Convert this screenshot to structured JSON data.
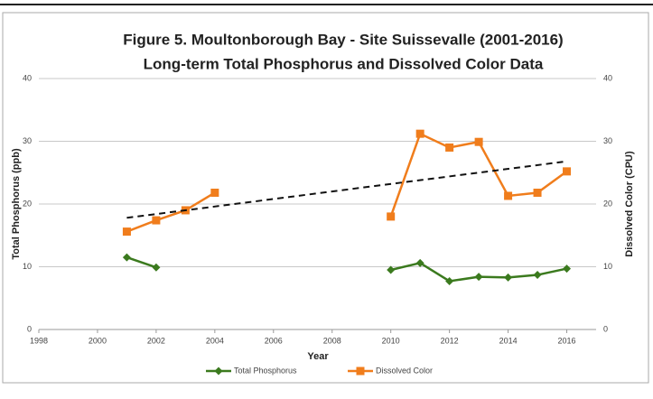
{
  "chart_data": {
    "type": "line",
    "title": [
      "Figure 5. Moultonborough Bay - Site Suissevalle (2001-2016)",
      "Long-term Total Phosphorus and Dissolved Color Data"
    ],
    "x_label": "Year",
    "y_label": "Total Phosphorus (ppb)",
    "y2_label": "Dissolved Color (CPU)",
    "x": [
      2001,
      2002,
      2003,
      2004,
      2005,
      2006,
      2007,
      2008,
      2009,
      2010,
      2011,
      2012,
      2013,
      2014,
      2015,
      2016
    ],
    "series": [
      {
        "name": "Total Phosphorus",
        "color": "#3b7a1e",
        "marker": "diamond",
        "values": [
          11.5,
          9.9,
          null,
          null,
          null,
          null,
          null,
          null,
          null,
          9.5,
          10.6,
          7.7,
          8.4,
          8.3,
          8.7,
          9.7
        ]
      },
      {
        "name": "Dissolved Color",
        "color": "#f07d1c",
        "marker": "square",
        "axis": "y2",
        "values": [
          15.6,
          17.4,
          19.0,
          21.8,
          null,
          null,
          null,
          null,
          null,
          18.0,
          31.2,
          29.0,
          29.9,
          21.3,
          21.8,
          25.2
        ]
      }
    ],
    "trend": {
      "color": "#111",
      "axis": "y2",
      "x": [
        2001,
        2016
      ],
      "values": [
        17.8,
        26.8
      ]
    },
    "xlim": [
      1998,
      2017
    ],
    "xticks": [
      1998,
      2000,
      2002,
      2004,
      2006,
      2008,
      2010,
      2012,
      2014,
      2016
    ],
    "ylim": [
      0,
      40
    ],
    "yticks": [
      0,
      10,
      20,
      30,
      40
    ],
    "y2lim": [
      0,
      40
    ],
    "y2ticks": [
      0,
      10,
      20,
      30,
      40
    ],
    "grid": true,
    "legend": "bottom"
  }
}
